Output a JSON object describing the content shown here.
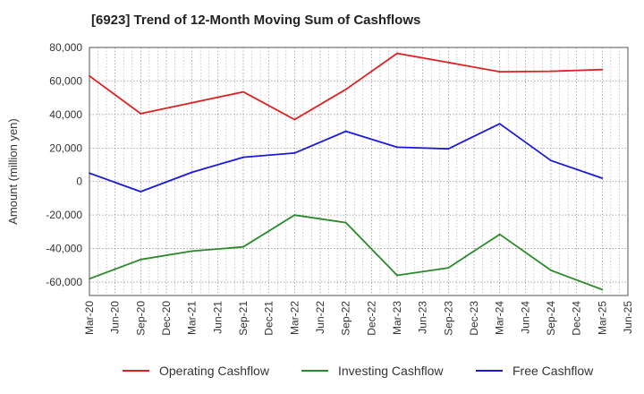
{
  "chart_data": {
    "type": "line",
    "title": "[6923]  Trend of 12-Month Moving Sum of Cashflows",
    "ylabel": "Amount (million yen)",
    "xlabel": "",
    "x_ticks": [
      "Mar-20",
      "Jun-20",
      "Sep-20",
      "Dec-20",
      "Mar-21",
      "Jun-21",
      "Sep-21",
      "Dec-21",
      "Mar-22",
      "Jun-22",
      "Sep-22",
      "Dec-22",
      "Mar-23",
      "Jun-23",
      "Sep-23",
      "Dec-23",
      "Mar-24",
      "Jun-24",
      "Sep-24",
      "Dec-24",
      "Mar-25",
      "Jun-25"
    ],
    "y_ticks": [
      80000,
      60000,
      40000,
      20000,
      0,
      -20000,
      -40000,
      -60000
    ],
    "y_tick_labels": [
      "80,000",
      "60,000",
      "40,000",
      "20,000",
      "0",
      "-20,000",
      "-40,000",
      "-60,000"
    ],
    "ylim": [
      -68000,
      80000
    ],
    "grid": true,
    "legend_position": "bottom",
    "series": [
      {
        "name": "Operating Cashflow",
        "color": "#e02020",
        "x": [
          "Mar-20",
          "Sep-20",
          "Mar-21",
          "Sep-21",
          "Mar-22",
          "Sep-22",
          "Mar-23",
          "Sep-23",
          "Mar-24",
          "Sep-24",
          "Mar-25"
        ],
        "values": [
          63000,
          40500,
          47000,
          53500,
          37000,
          55000,
          76500,
          71000,
          65500,
          65800,
          66800
        ]
      },
      {
        "name": "Investing Cashflow",
        "color": "#2a8a2a",
        "x": [
          "Mar-20",
          "Sep-20",
          "Mar-21",
          "Sep-21",
          "Mar-22",
          "Sep-22",
          "Mar-23",
          "Sep-23",
          "Mar-24",
          "Sep-24",
          "Mar-25"
        ],
        "values": [
          -58000,
          -46500,
          -41500,
          -39000,
          -20000,
          -24500,
          -56000,
          -51500,
          -31500,
          -53000,
          -64500
        ]
      },
      {
        "name": "Free Cashflow",
        "color": "#1a1adc",
        "x": [
          "Mar-20",
          "Sep-20",
          "Mar-21",
          "Sep-21",
          "Mar-22",
          "Sep-22",
          "Mar-23",
          "Sep-23",
          "Mar-24",
          "Sep-24",
          "Mar-25"
        ],
        "values": [
          5000,
          -6000,
          5500,
          14500,
          17000,
          30000,
          20500,
          19500,
          34500,
          12500,
          2000
        ]
      }
    ]
  }
}
